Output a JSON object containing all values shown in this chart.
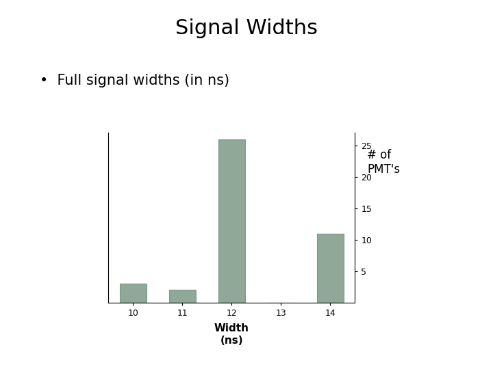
{
  "title": "Signal Widths",
  "bullet": "•  Full signal widths (in ns)",
  "xlabel": "Width\n(ns)",
  "ylabel": "# of\nPMT's",
  "x_values": [
    10,
    11,
    12,
    13,
    14
  ],
  "y_values": [
    3,
    2,
    26,
    0,
    11
  ],
  "bar_color": "#8fA898",
  "bar_edgecolor": "#7a9a88",
  "ylim": [
    0,
    27
  ],
  "yticks": [
    5,
    10,
    15,
    20,
    25
  ],
  "xticks": [
    10,
    11,
    12,
    13,
    14
  ],
  "bar_width": 0.55,
  "bg_color": "#ffffff",
  "title_fontsize": 22,
  "bullet_fontsize": 15,
  "axis_label_fontsize": 11,
  "tick_fontsize": 9,
  "ylabel_fontsize": 12
}
